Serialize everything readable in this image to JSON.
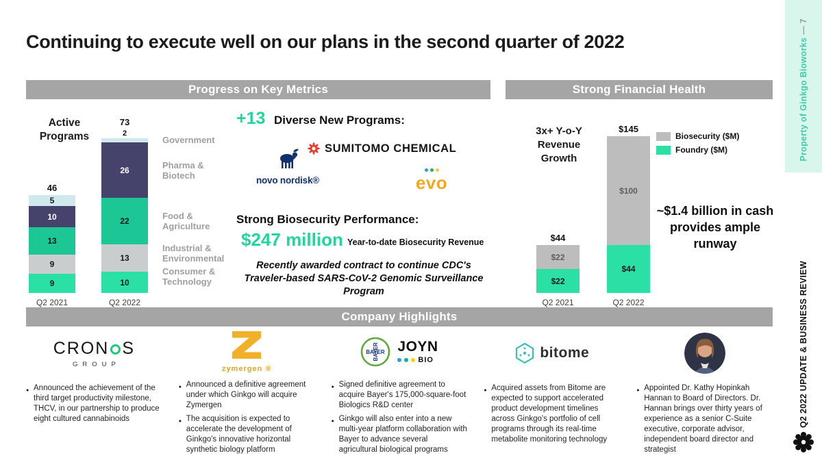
{
  "slide": {
    "title": "Continuing to execute well on our plans in the second quarter of 2022",
    "side_top_note": "Property of Ginkgo Bioworks",
    "side_page_number": "—  7",
    "side_bottom_note": "Q2 2022 UPDATE & BUSINESS REVIEW"
  },
  "section_headers": {
    "progress": "Progress on Key Metrics",
    "financial": "Strong Financial Health",
    "highlights": "Company Highlights"
  },
  "active_programs": {
    "title": "Active Programs",
    "sector_labels_top_down": [
      "Government",
      "Pharma & Biotech",
      "Food & Agriculture",
      "Industrial & Environmental",
      "Consumer & Technology"
    ]
  },
  "new_programs": {
    "delta": "+13",
    "heading": "Diverse New Programs:",
    "logos": [
      {
        "name": "Novo Nordisk",
        "text": "novo nordisk®"
      },
      {
        "name": "Sumitomo Chemical",
        "text": "SUMITOMO CHEMICAL"
      },
      {
        "name": "evo",
        "text": "evo"
      }
    ]
  },
  "biosecurity": {
    "heading": "Strong Biosecurity Performance:",
    "amount": "$247 million",
    "amount_caption": "Year-to-date Biosecurity Revenue",
    "note": "Recently awarded contract to continue CDC's Traveler-based SARS-CoV-2 Genomic Surveillance Program"
  },
  "financial": {
    "growth_callout": "3x+ Y-o-Y Revenue Growth",
    "legend": [
      {
        "label": "Biosecurity ($M)",
        "color": "#bdbdbd"
      },
      {
        "label": "Foundry ($M)",
        "color": "#2ae0a5"
      }
    ],
    "cash_callout": "~$1.4 billion in cash provides ample runway"
  },
  "chart_data": [
    {
      "type": "bar",
      "stacked": true,
      "title": "Active Programs",
      "categories": [
        "Q2 2021",
        "Q2 2022"
      ],
      "totals": [
        46,
        73
      ],
      "series": [
        {
          "name": "Consumer & Technology",
          "values": [
            9,
            10
          ],
          "color": "#2ae0a5"
        },
        {
          "name": "Industrial & Environmental",
          "values": [
            9,
            13
          ],
          "color": "#c9cdce"
        },
        {
          "name": "Food & Agriculture",
          "values": [
            13,
            22
          ],
          "color": "#1cc795"
        },
        {
          "name": "Pharma & Biotech",
          "values": [
            10,
            26
          ],
          "color": "#45436b",
          "label_color": "#ffffff"
        },
        {
          "name": "Government",
          "values": [
            5,
            2
          ],
          "color": "#cfe9ec"
        }
      ]
    },
    {
      "type": "bar",
      "stacked": true,
      "categories": [
        "Q2 2021",
        "Q2 2022"
      ],
      "totals_labels": [
        "$44",
        "$145"
      ],
      "series": [
        {
          "name": "Foundry ($M)",
          "values": [
            22,
            44
          ],
          "labels": [
            "$22",
            "$44"
          ],
          "color": "#2ae0a5",
          "label_color": "#17171c"
        },
        {
          "name": "Biosecurity ($M)",
          "values": [
            22,
            100
          ],
          "labels": [
            "$22",
            "$100"
          ],
          "color": "#bdbdbd",
          "label_color": "#5e5e5e"
        }
      ]
    }
  ],
  "highlights": {
    "columns": [
      {
        "company": "Cronos Group",
        "logo": {
          "start": "CRON",
          "end": "S",
          "group": "GROUP"
        },
        "bullets": [
          "Announced the achievement of the third target productivity milestone, THCV, in our partnership to produce eight cultured cannabinoids"
        ]
      },
      {
        "company": "Zymergen",
        "logo": {
          "text": "zymergen ®"
        },
        "bullets": [
          "Announced a definitive agreement under which Ginkgo will acquire Zymergen",
          "The acquisition is expected to accelerate the development of Ginkgo's innovative horizontal synthetic biology platform"
        ]
      },
      {
        "company": "Bayer / Joyn Bio",
        "logo": {
          "bayer": "BAYER",
          "joyn": "JOYN",
          "bio": "BIO"
        },
        "bullets": [
          "Signed definitive agreement to acquire Bayer's 175,000-square-foot Biologics R&D center",
          "Ginkgo will also enter into a new multi-year platform collaboration with Bayer to advance several agricultural biological programs"
        ]
      },
      {
        "company": "Bitome",
        "logo": {
          "text": "bitome"
        },
        "bullets": [
          "Acquired assets from Bitome are expected to support accelerated product development timelines across Ginkgo's portfolio of cell programs through its real-time metabolite monitoring technology"
        ]
      },
      {
        "logo": {},
        "bullets": [
          "Appointed Dr. Kathy Hopinkah Hannan to Board of Directors. Dr. Hannan brings over thirty years of experience as a senior C-Suite executive, corporate advisor, independent board director and strategist"
        ]
      }
    ]
  }
}
